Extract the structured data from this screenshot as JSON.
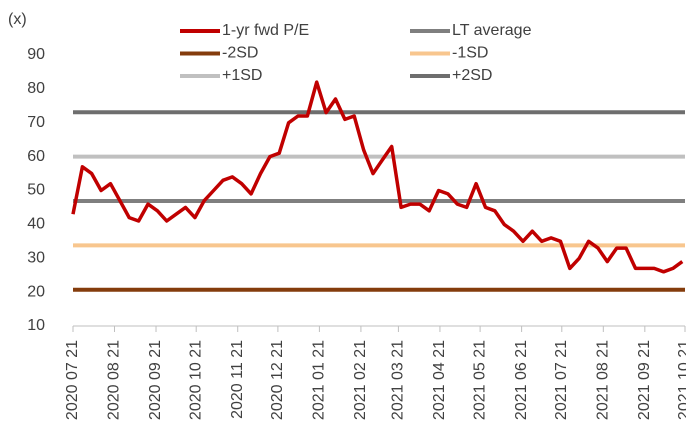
{
  "chart_data": {
    "type": "line",
    "y_label": "(x)",
    "ylim": [
      10,
      90
    ],
    "yticks": [
      10,
      20,
      30,
      40,
      50,
      60,
      70,
      80,
      90
    ],
    "xlim": [
      "2020-07-21",
      "2021-10-21"
    ],
    "xticks": [
      {
        "value": "2020-07-21",
        "label": "2020 07 21"
      },
      {
        "value": "2020-08-21",
        "label": "2020 08 21"
      },
      {
        "value": "2020-09-21",
        "label": "2020 09 21"
      },
      {
        "value": "2020-10-21",
        "label": "2020 10 21"
      },
      {
        "value": "2020-11-21",
        "label": "2020 11 21"
      },
      {
        "value": "2020-12-21",
        "label": "2020 12 21"
      },
      {
        "value": "2021-01-21",
        "label": "2021 01 21"
      },
      {
        "value": "2021-02-21",
        "label": "2021 02 21"
      },
      {
        "value": "2021-03-21",
        "label": "2021 03 21"
      },
      {
        "value": "2021-04-21",
        "label": "2021 04 21"
      },
      {
        "value": "2021-05-21",
        "label": "2021 05 21"
      },
      {
        "value": "2021-06-21",
        "label": "2021 06 21"
      },
      {
        "value": "2021-07-21",
        "label": "2021 07 21"
      },
      {
        "value": "2021-08-21",
        "label": "2021 08 21"
      },
      {
        "value": "2021-09-21",
        "label": "2021 09 21"
      },
      {
        "value": "2021-10-21",
        "label": "2021 10 21"
      }
    ],
    "x": [
      "2020-07-21",
      "2020-07-28",
      "2020-08-04",
      "2020-08-11",
      "2020-08-18",
      "2020-08-25",
      "2020-09-01",
      "2020-09-08",
      "2020-09-15",
      "2020-09-22",
      "2020-09-29",
      "2020-10-06",
      "2020-10-13",
      "2020-10-20",
      "2020-10-27",
      "2020-11-03",
      "2020-11-10",
      "2020-11-17",
      "2020-11-24",
      "2020-12-01",
      "2020-12-08",
      "2020-12-15",
      "2020-12-22",
      "2020-12-29",
      "2021-01-05",
      "2021-01-12",
      "2021-01-19",
      "2021-01-26",
      "2021-02-02",
      "2021-02-09",
      "2021-02-16",
      "2021-02-23",
      "2021-03-02",
      "2021-03-09",
      "2021-03-16",
      "2021-03-23",
      "2021-03-30",
      "2021-04-06",
      "2021-04-13",
      "2021-04-20",
      "2021-04-27",
      "2021-05-04",
      "2021-05-11",
      "2021-05-18",
      "2021-05-25",
      "2021-06-01",
      "2021-06-08",
      "2021-06-15",
      "2021-06-22",
      "2021-06-29",
      "2021-07-06",
      "2021-07-13",
      "2021-07-20",
      "2021-07-27",
      "2021-08-03",
      "2021-08-10",
      "2021-08-17",
      "2021-08-24",
      "2021-08-31",
      "2021-09-07",
      "2021-09-14",
      "2021-09-21",
      "2021-09-28",
      "2021-10-05",
      "2021-10-12",
      "2021-10-19"
    ],
    "series": [
      {
        "name": "1-yr fwd P/E",
        "color": "#c00000",
        "values": [
          43,
          57,
          55,
          50,
          52,
          47,
          42,
          41,
          46,
          44,
          41,
          43,
          45,
          42,
          47,
          50,
          53,
          54,
          52,
          49,
          55,
          60,
          61,
          70,
          72,
          72,
          82,
          73,
          77,
          71,
          72,
          62,
          55,
          59,
          63,
          45,
          46,
          46,
          44,
          50,
          49,
          46,
          45,
          52,
          45,
          44,
          40,
          38,
          35,
          38,
          35,
          36,
          35,
          27,
          30,
          35,
          33,
          29,
          33,
          33,
          27,
          27,
          27,
          26,
          27,
          29
        ]
      }
    ],
    "reference_lines": [
      {
        "name": "LT average",
        "color": "#7f7f7f",
        "value": 46.9
      },
      {
        "name": "-2SD",
        "color": "#843c0c",
        "value": 20.7
      },
      {
        "name": "-1SD",
        "color": "#f8c68e",
        "value": 33.8
      },
      {
        "name": "+1SD",
        "color": "#c0c0c0",
        "value": 60.0
      },
      {
        "name": "+2SD",
        "color": "#6e6e6e",
        "value": 73.1
      }
    ]
  }
}
